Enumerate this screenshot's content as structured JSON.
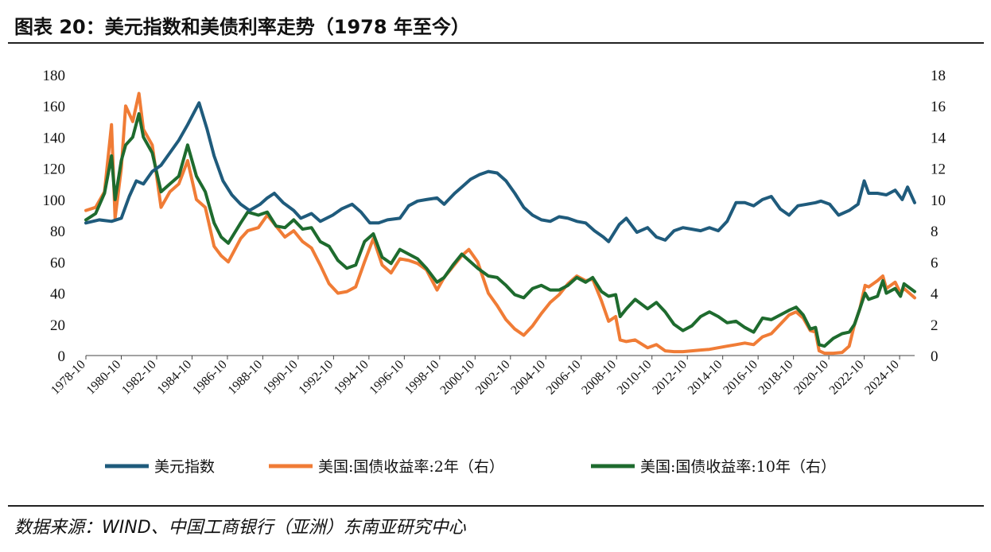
{
  "header": {
    "title": "图表 20：美元指数和美债利率走势（1978 年至今）"
  },
  "footer": {
    "source": "数据来源：WIND、中国工商银行（亚洲）东南亚研究中心"
  },
  "chart_data": {
    "type": "line",
    "xlabel": "",
    "ylabel_left": "",
    "ylabel_right": "",
    "ylim_left": [
      0,
      180
    ],
    "ylim_right": [
      0,
      18
    ],
    "yticks_left": [
      "0",
      "20",
      "40",
      "60",
      "80",
      "100",
      "120",
      "140",
      "160",
      "180"
    ],
    "yticks_right": [
      "0",
      "2",
      "4",
      "6",
      "8",
      "10",
      "12",
      "14",
      "16",
      "18"
    ],
    "x_tick_labels": [
      "1978-10",
      "1980-10",
      "1982-10",
      "1984-10",
      "1986-10",
      "1988-10",
      "1990-10",
      "1992-10",
      "1994-10",
      "1996-10",
      "1998-10",
      "2000-10",
      "2002-10",
      "2004-10",
      "2006-10",
      "2008-10",
      "2010-10",
      "2012-10",
      "2014-10",
      "2016-10",
      "2018-10",
      "2020-10",
      "2022-10",
      "2024-10"
    ],
    "x_range": [
      1978.75,
      2025.6
    ],
    "grid": false,
    "legend_position": "bottom",
    "series": [
      {
        "name": "美元指数",
        "axis": "left",
        "color": "#1f5b7c",
        "x": [
          1978.75,
          1979.5,
          1980.2,
          1980.75,
          1981.2,
          1981.6,
          1982.0,
          1982.5,
          1983.0,
          1983.5,
          1984.0,
          1984.5,
          1985.15,
          1985.6,
          1986.0,
          1986.5,
          1987.0,
          1987.5,
          1988.0,
          1988.6,
          1989.0,
          1989.4,
          1989.9,
          1990.5,
          1990.9,
          1991.5,
          1992.0,
          1992.7,
          1993.2,
          1993.8,
          1994.3,
          1994.8,
          1995.3,
          1995.8,
          1996.5,
          1997.0,
          1997.5,
          1998.0,
          1998.6,
          1999.0,
          1999.6,
          2000.0,
          2000.5,
          2001.0,
          2001.5,
          2002.0,
          2002.5,
          2003.0,
          2003.5,
          2004.0,
          2004.5,
          2005.0,
          2005.5,
          2006.0,
          2006.5,
          2007.0,
          2007.5,
          2008.0,
          2008.3,
          2008.9,
          2009.3,
          2009.9,
          2010.5,
          2011.0,
          2011.5,
          2012.0,
          2012.5,
          2013.0,
          2013.5,
          2014.0,
          2014.5,
          2015.0,
          2015.5,
          2016.0,
          2016.5,
          2017.0,
          2017.5,
          2018.0,
          2018.5,
          2019.0,
          2019.5,
          2020.0,
          2020.3,
          2020.8,
          2021.3,
          2021.9,
          2022.4,
          2022.75,
          2023.0,
          2023.5,
          2024.0,
          2024.5,
          2024.9,
          2025.2,
          2025.6
        ],
        "y": [
          85,
          87,
          86,
          88,
          102,
          112,
          110,
          118,
          122,
          130,
          138,
          148,
          162,
          145,
          128,
          112,
          103,
          97,
          93,
          97,
          101,
          104,
          98,
          93,
          88,
          91,
          86,
          90,
          94,
          97,
          92,
          85,
          85,
          87,
          88,
          96,
          99,
          100,
          101,
          97,
          104,
          108,
          113,
          116,
          118,
          117,
          112,
          104,
          95,
          90,
          87,
          86,
          89,
          88,
          86,
          85,
          80,
          76,
          73,
          84,
          88,
          79,
          82,
          76,
          74,
          80,
          82,
          81,
          80,
          82,
          80,
          86,
          98,
          98,
          96,
          100,
          102,
          94,
          90,
          96,
          97,
          98,
          99,
          97,
          90,
          93,
          97,
          112,
          104,
          104,
          103,
          106,
          100,
          108,
          98
        ]
      },
      {
        "name": "美国:国债收益率:2年（右）",
        "axis": "right",
        "color": "#f07c36",
        "x": [
          1978.75,
          1979.3,
          1979.8,
          1980.2,
          1980.4,
          1980.75,
          1981.0,
          1981.4,
          1981.75,
          1982.0,
          1982.5,
          1983.0,
          1983.5,
          1984.0,
          1984.5,
          1985.0,
          1985.5,
          1986.0,
          1986.4,
          1986.8,
          1987.5,
          1987.9,
          1988.5,
          1989.0,
          1989.5,
          1990.0,
          1990.5,
          1991.0,
          1991.5,
          1992.0,
          1992.5,
          1993.0,
          1993.5,
          1994.0,
          1994.5,
          1995.0,
          1995.5,
          1996.0,
          1996.5,
          1997.0,
          1997.5,
          1998.0,
          1998.6,
          1999.0,
          1999.5,
          2000.0,
          2000.4,
          2000.9,
          2001.5,
          2002.0,
          2002.5,
          2003.0,
          2003.5,
          2004.0,
          2004.5,
          2005.0,
          2005.5,
          2006.0,
          2006.5,
          2007.0,
          2007.4,
          2007.9,
          2008.3,
          2008.7,
          2008.95,
          2009.3,
          2009.8,
          2010.5,
          2011.0,
          2011.5,
          2012.0,
          2012.5,
          2013.0,
          2013.5,
          2014.0,
          2014.5,
          2015.0,
          2015.5,
          2016.0,
          2016.5,
          2017.0,
          2017.5,
          2018.0,
          2018.5,
          2018.9,
          2019.3,
          2019.7,
          2020.0,
          2020.2,
          2020.5,
          2021.0,
          2021.5,
          2021.9,
          2022.2,
          2022.5,
          2022.8,
          2023.0,
          2023.5,
          2023.8,
          2024.0,
          2024.5,
          2024.8,
          2025.0,
          2025.6
        ],
        "y": [
          9.3,
          9.5,
          10.5,
          14.8,
          8.8,
          12.0,
          16.0,
          15.0,
          16.8,
          14.5,
          13.5,
          9.5,
          10.5,
          11.0,
          12.5,
          10.0,
          9.5,
          7.0,
          6.4,
          6.0,
          7.5,
          8.0,
          8.2,
          9.0,
          8.3,
          7.6,
          8.0,
          7.3,
          6.9,
          5.8,
          4.6,
          4.0,
          4.1,
          4.4,
          6.0,
          7.5,
          5.8,
          5.3,
          6.2,
          6.1,
          5.9,
          5.5,
          4.2,
          5.0,
          5.7,
          6.4,
          6.8,
          6.0,
          4.0,
          3.2,
          2.3,
          1.7,
          1.3,
          1.9,
          2.7,
          3.4,
          3.9,
          4.6,
          5.1,
          4.8,
          4.9,
          3.5,
          2.2,
          2.5,
          1.0,
          0.9,
          1.0,
          0.5,
          0.7,
          0.3,
          0.25,
          0.25,
          0.3,
          0.35,
          0.4,
          0.5,
          0.6,
          0.7,
          0.8,
          0.7,
          1.2,
          1.4,
          2.0,
          2.6,
          2.8,
          2.4,
          1.6,
          1.5,
          0.3,
          0.15,
          0.15,
          0.2,
          0.6,
          2.0,
          3.0,
          4.5,
          4.4,
          4.8,
          5.1,
          4.3,
          4.7,
          4.0,
          4.3,
          3.7
        ]
      },
      {
        "name": "美国:国债收益率:10年（右）",
        "axis": "right",
        "color": "#1e6b2e",
        "x": [
          1978.75,
          1979.3,
          1979.8,
          1980.2,
          1980.4,
          1980.75,
          1981.0,
          1981.4,
          1981.75,
          1982.0,
          1982.5,
          1983.0,
          1983.5,
          1984.0,
          1984.5,
          1985.0,
          1985.5,
          1986.0,
          1986.4,
          1986.8,
          1987.5,
          1987.9,
          1988.5,
          1989.0,
          1989.5,
          1990.0,
          1990.5,
          1991.0,
          1991.5,
          1992.0,
          1992.5,
          1993.0,
          1993.5,
          1994.0,
          1994.5,
          1995.0,
          1995.5,
          1996.0,
          1996.5,
          1997.0,
          1997.5,
          1998.0,
          1998.6,
          1999.0,
          1999.5,
          2000.0,
          2000.4,
          2000.9,
          2001.5,
          2002.0,
          2002.5,
          2003.0,
          2003.5,
          2004.0,
          2004.5,
          2005.0,
          2005.5,
          2006.0,
          2006.5,
          2007.0,
          2007.4,
          2007.9,
          2008.3,
          2008.7,
          2008.95,
          2009.3,
          2009.8,
          2010.5,
          2011.0,
          2011.5,
          2012.0,
          2012.5,
          2013.0,
          2013.5,
          2014.0,
          2014.5,
          2015.0,
          2015.5,
          2016.0,
          2016.5,
          2017.0,
          2017.5,
          2018.0,
          2018.5,
          2018.9,
          2019.3,
          2019.7,
          2020.0,
          2020.2,
          2020.5,
          2021.0,
          2021.5,
          2021.9,
          2022.2,
          2022.5,
          2022.8,
          2023.0,
          2023.5,
          2023.8,
          2024.0,
          2024.5,
          2024.8,
          2025.0,
          2025.6
        ],
        "y": [
          8.7,
          9.1,
          10.4,
          12.8,
          10.0,
          12.5,
          13.5,
          14.0,
          15.5,
          14.0,
          13.0,
          10.5,
          11.0,
          11.5,
          13.5,
          11.5,
          10.5,
          8.5,
          7.6,
          7.2,
          8.5,
          9.2,
          9.0,
          9.2,
          8.3,
          8.2,
          8.7,
          8.1,
          8.2,
          7.3,
          7.0,
          6.1,
          5.6,
          5.8,
          7.3,
          7.8,
          6.3,
          5.9,
          6.8,
          6.5,
          6.2,
          5.6,
          4.7,
          5.0,
          5.8,
          6.5,
          6.1,
          5.6,
          5.1,
          5.0,
          4.5,
          3.9,
          3.7,
          4.3,
          4.5,
          4.2,
          4.2,
          4.5,
          5.0,
          4.7,
          5.0,
          4.1,
          3.8,
          3.9,
          2.5,
          3.0,
          3.6,
          3.0,
          3.4,
          2.8,
          2.0,
          1.6,
          1.9,
          2.5,
          2.8,
          2.5,
          2.1,
          2.2,
          1.8,
          1.5,
          2.4,
          2.3,
          2.6,
          2.9,
          3.1,
          2.6,
          1.7,
          1.8,
          0.7,
          0.6,
          1.1,
          1.4,
          1.5,
          2.0,
          3.0,
          4.0,
          3.6,
          3.8,
          4.8,
          4.0,
          4.3,
          3.8,
          4.6,
          4.1
        ]
      }
    ]
  }
}
